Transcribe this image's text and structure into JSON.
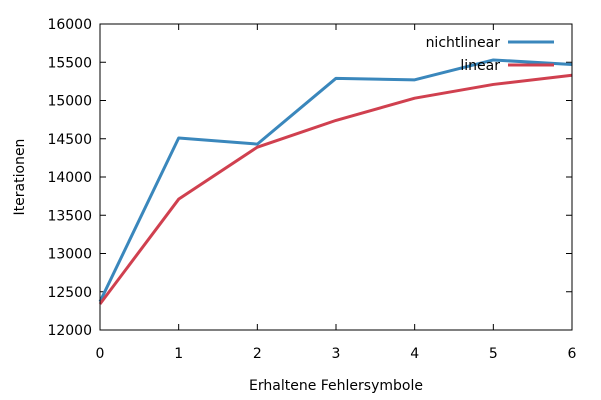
{
  "chart_data": {
    "type": "line",
    "title": "",
    "xlabel": "Erhaltene Fehlersymbole",
    "ylabel": "Iterationen",
    "xlim": [
      0,
      6
    ],
    "ylim": [
      12000,
      16000
    ],
    "x": [
      0,
      1,
      2,
      3,
      4,
      5,
      6
    ],
    "x_ticks": [
      "0",
      "1",
      "2",
      "3",
      "4",
      "5",
      "6"
    ],
    "y_ticks": [
      "12000",
      "12500",
      "13000",
      "13500",
      "14000",
      "14500",
      "15000",
      "15500",
      "16000"
    ],
    "grid": false,
    "legend_position": "top-right",
    "series": [
      {
        "name": "nichtlinear",
        "color": "#3a87bc",
        "values": [
          12370,
          14510,
          14430,
          15290,
          15270,
          15530,
          15470
        ]
      },
      {
        "name": "linear",
        "color": "#d0404f",
        "values": [
          12340,
          13710,
          14390,
          14740,
          15030,
          15210,
          15330
        ]
      }
    ]
  }
}
